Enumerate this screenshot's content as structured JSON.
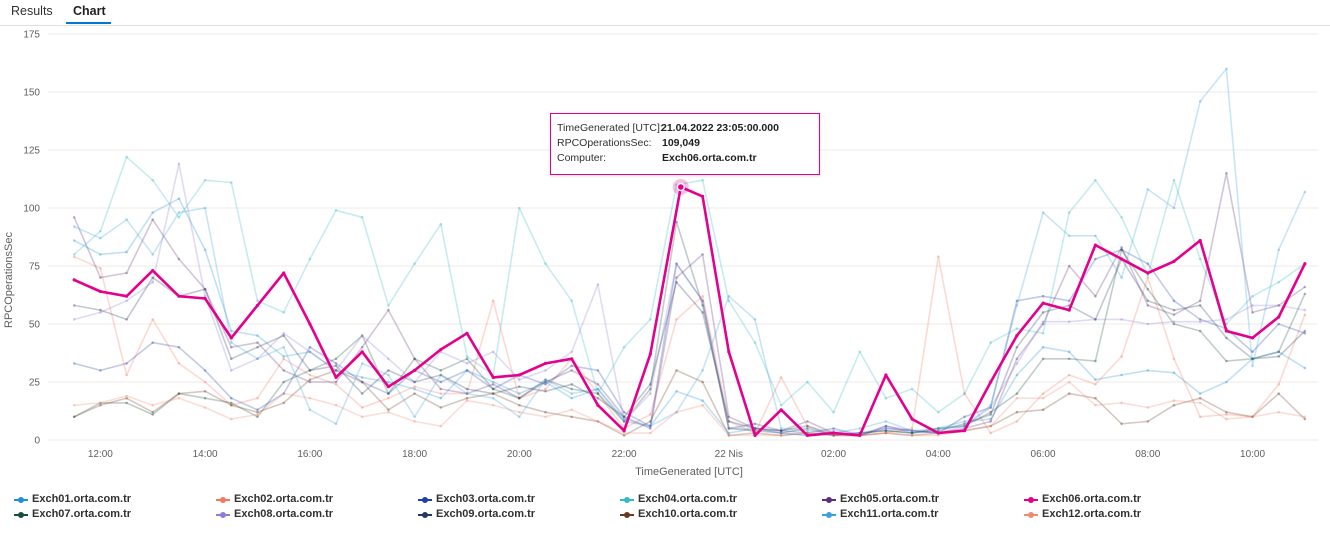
{
  "tabs": [
    {
      "label": "Results",
      "active": false
    },
    {
      "label": "Chart",
      "active": true
    }
  ],
  "chart_data": {
    "type": "line",
    "xlabel": "TimeGenerated [UTC]",
    "ylabel": "RPCOperationsSec",
    "ylim": [
      0,
      175
    ],
    "yticks": [
      0,
      25,
      50,
      75,
      100,
      125,
      150,
      175
    ],
    "xlim": [
      11.0,
      35.25
    ],
    "xtick_labels": [
      "12:00",
      "14:00",
      "16:00",
      "18:00",
      "20:00",
      "22:00",
      "22 Nis",
      "02:00",
      "04:00",
      "06:00",
      "08:00",
      "10:00"
    ],
    "grid": true,
    "legend_position": "bottom",
    "highlight_series": "Exch06.orta.com.tr",
    "series": [
      {
        "name": "Exch01.orta.com.tr",
        "color": "#1f8fd6",
        "x": [
          11.5,
          12.0,
          12.5,
          13.0,
          13.5,
          14.0,
          14.5,
          15.0,
          15.5,
          16.0,
          16.5,
          17.0,
          17.5,
          18.0,
          18.5,
          19.0,
          19.5,
          20.0,
          20.5,
          21.0,
          21.5,
          22.0,
          22.5,
          23.0,
          23.5,
          24.0,
          24.5,
          25.0,
          25.5,
          26.0,
          26.5,
          27.0,
          27.5,
          28.0,
          28.5,
          29.0,
          29.5,
          30.0,
          30.5,
          31.0,
          31.5,
          32.0,
          32.5,
          33.0,
          33.5,
          34.0,
          34.5,
          35.0
        ],
        "values": [
          86,
          80,
          81,
          98,
          104,
          82,
          47,
          45,
          36,
          38,
          30,
          27,
          25,
          22,
          18,
          30,
          25,
          20,
          25,
          18,
          22,
          8,
          6,
          21,
          17,
          3,
          5,
          3,
          2,
          3,
          2,
          6,
          3,
          5,
          8,
          9,
          28,
          40,
          38,
          26,
          28,
          30,
          29,
          20,
          25,
          35,
          38,
          31
        ]
      },
      {
        "name": "Exch02.orta.com.tr",
        "color": "#f4775e",
        "x": [
          11.5,
          12.0,
          12.5,
          13.0,
          13.5,
          14.0,
          14.5,
          15.0,
          15.5,
          16.0,
          16.5,
          17.0,
          17.5,
          18.0,
          18.5,
          19.0,
          19.5,
          20.0,
          20.5,
          21.0,
          21.5,
          22.0,
          22.5,
          23.0,
          23.5,
          24.0,
          24.5,
          25.0,
          25.5,
          26.0,
          26.5,
          27.0,
          27.5,
          28.0,
          28.5,
          29.0,
          29.5,
          30.0,
          30.5,
          31.0,
          31.5,
          32.0,
          32.5,
          33.0,
          33.5,
          34.0,
          34.5,
          35.0
        ],
        "values": [
          79,
          74,
          28,
          52,
          33,
          25,
          15,
          18,
          35,
          28,
          24,
          14,
          18,
          23,
          20,
          20,
          60,
          18,
          22,
          35,
          20,
          5,
          11,
          52,
          62,
          8,
          3,
          27,
          6,
          3,
          2,
          3,
          5,
          79,
          20,
          3,
          8,
          20,
          28,
          24,
          36,
          70,
          35,
          10,
          11,
          10,
          24,
          54
        ]
      },
      {
        "name": "Exch03.orta.com.tr",
        "color": "#1f3fa8",
        "x": [
          11.5,
          12.0,
          12.5,
          13.0,
          13.5,
          14.0,
          14.5,
          15.0,
          15.5,
          16.0,
          16.5,
          17.0,
          17.5,
          18.0,
          18.5,
          19.0,
          19.5,
          20.0,
          20.5,
          21.0,
          21.5,
          22.0,
          22.5,
          23.0,
          23.5,
          24.0,
          24.5,
          25.0,
          25.5,
          26.0,
          26.5,
          27.0,
          27.5,
          28.0,
          28.5,
          29.0,
          29.5,
          30.0,
          30.5,
          31.0,
          31.5,
          32.0,
          32.5,
          33.0,
          33.5,
          34.0,
          34.5,
          35.0
        ],
        "values": [
          33,
          30,
          33,
          42,
          40,
          30,
          18,
          13,
          20,
          40,
          33,
          25,
          20,
          30,
          25,
          30,
          22,
          28,
          24,
          32,
          30,
          12,
          6,
          76,
          60,
          5,
          7,
          4,
          3,
          5,
          2,
          5,
          4,
          3,
          10,
          14,
          60,
          62,
          60,
          78,
          82,
          76,
          60,
          52,
          48,
          38,
          50,
          46
        ]
      },
      {
        "name": "Exch04.orta.com.tr",
        "color": "#35b7c5",
        "x": [
          11.5,
          12.0,
          12.5,
          13.0,
          13.5,
          14.0,
          14.5,
          15.0,
          15.5,
          16.0,
          16.5,
          17.0,
          17.5,
          18.0,
          18.5,
          19.0,
          19.5,
          20.0,
          20.5,
          21.0,
          21.5,
          22.0,
          22.5,
          23.0,
          23.5,
          24.0,
          24.5,
          25.0,
          25.5,
          26.0,
          26.5,
          27.0,
          27.5,
          28.0,
          28.5,
          29.0,
          29.5,
          30.0,
          30.5,
          31.0,
          31.5,
          32.0,
          32.5,
          33.0,
          33.5,
          34.0,
          34.5,
          35.0
        ],
        "values": [
          80,
          90,
          122,
          112,
          96,
          112,
          111,
          60,
          55,
          78,
          99,
          96,
          58,
          76,
          93,
          36,
          28,
          100,
          76,
          60,
          20,
          40,
          52,
          110,
          112,
          60,
          42,
          15,
          25,
          12,
          38,
          18,
          22,
          12,
          20,
          42,
          48,
          46,
          98,
          112,
          96,
          71,
          112,
          78,
          50,
          62,
          68,
          76
        ]
      },
      {
        "name": "Exch05.orta.com.tr",
        "color": "#5c2d7b",
        "x": [
          11.5,
          12.0,
          12.5,
          13.0,
          13.5,
          14.0,
          14.5,
          15.0,
          15.5,
          16.0,
          16.5,
          17.0,
          17.5,
          18.0,
          18.5,
          19.0,
          19.5,
          20.0,
          20.5,
          21.0,
          21.5,
          22.0,
          22.5,
          23.0,
          23.5,
          24.0,
          24.5,
          25.0,
          25.5,
          26.0,
          26.5,
          27.0,
          27.5,
          28.0,
          28.5,
          29.0,
          29.5,
          30.0,
          30.5,
          31.0,
          31.5,
          32.0,
          32.5,
          33.0,
          33.5,
          34.0,
          34.5,
          35.0
        ],
        "values": [
          96,
          70,
          72,
          95,
          78,
          65,
          40,
          42,
          30,
          25,
          25,
          40,
          56,
          35,
          22,
          20,
          24,
          18,
          25,
          30,
          24,
          10,
          5,
          70,
          80,
          10,
          5,
          4,
          8,
          3,
          2,
          6,
          4,
          3,
          5,
          8,
          35,
          50,
          75,
          62,
          83,
          58,
          54,
          60,
          115,
          55,
          58,
          66
        ]
      },
      {
        "name": "Exch06.orta.com.tr",
        "color": "#e3008c",
        "x": [
          11.5,
          12.0,
          12.5,
          13.0,
          13.5,
          14.0,
          14.5,
          15.0,
          15.5,
          16.0,
          16.5,
          17.0,
          17.5,
          18.0,
          18.5,
          19.0,
          19.5,
          20.0,
          20.5,
          21.0,
          21.5,
          22.0,
          22.5,
          23.0833,
          23.5,
          24.0,
          24.5,
          25.0,
          25.5,
          26.0,
          26.5,
          27.0,
          27.5,
          28.0,
          28.5,
          29.0,
          29.5,
          30.0,
          30.5,
          31.0,
          31.5,
          32.0,
          32.5,
          33.0,
          33.5,
          34.0,
          34.5,
          35.0
        ],
        "values": [
          69,
          64,
          62,
          73,
          62,
          61,
          44,
          58,
          72,
          50,
          27,
          38,
          23,
          30,
          39,
          46,
          27,
          28,
          33,
          35,
          15,
          4,
          37,
          109.049,
          105,
          38,
          2,
          13,
          2,
          3,
          2,
          28,
          9,
          3,
          4,
          25,
          45,
          59,
          56,
          84,
          78,
          72,
          77,
          86,
          47,
          44,
          53,
          76
        ]
      },
      {
        "name": "Exch07.orta.com.tr",
        "color": "#1b4d3e",
        "x": [
          11.5,
          12.0,
          12.5,
          13.0,
          13.5,
          14.0,
          14.5,
          15.0,
          15.5,
          16.0,
          16.5,
          17.0,
          17.5,
          18.0,
          18.5,
          19.0,
          19.5,
          20.0,
          20.5,
          21.0,
          21.5,
          22.0,
          22.5,
          23.0,
          23.5,
          24.0,
          24.5,
          25.0,
          25.5,
          26.0,
          26.5,
          27.0,
          27.5,
          28.0,
          28.5,
          29.0,
          29.5,
          30.0,
          30.5,
          31.0,
          31.5,
          32.0,
          32.5,
          33.0,
          33.5,
          34.0,
          34.5,
          35.0
        ],
        "values": [
          10,
          16,
          16,
          11,
          20,
          18,
          16,
          10,
          25,
          30,
          35,
          45,
          20,
          35,
          30,
          35,
          22,
          18,
          26,
          22,
          20,
          8,
          22,
          94,
          58,
          5,
          4,
          3,
          5,
          2,
          3,
          4,
          3,
          5,
          6,
          12,
          20,
          35,
          35,
          34,
          82,
          65,
          50,
          47,
          34,
          35,
          38,
          63
        ]
      },
      {
        "name": "Exch08.orta.com.tr",
        "color": "#8b7fd4",
        "x": [
          11.5,
          12.0,
          12.5,
          13.0,
          13.5,
          14.0,
          14.5,
          15.0,
          15.5,
          16.0,
          16.5,
          17.0,
          17.5,
          18.0,
          18.5,
          19.0,
          19.5,
          20.0,
          20.5,
          21.0,
          21.5,
          22.0,
          22.5,
          23.0,
          23.5,
          24.0,
          24.5,
          25.0,
          25.5,
          26.0,
          26.5,
          27.0,
          27.5,
          28.0,
          28.5,
          29.0,
          29.5,
          30.0,
          30.5,
          31.0,
          31.5,
          32.0,
          32.5,
          33.0,
          33.5,
          34.0,
          34.5,
          35.0
        ],
        "values": [
          52,
          55,
          60,
          68,
          119,
          62,
          30,
          35,
          46,
          38,
          30,
          45,
          35,
          25,
          38,
          33,
          38,
          26,
          30,
          38,
          67,
          8,
          20,
          76,
          60,
          5,
          5,
          3,
          2,
          4,
          3,
          5,
          4,
          3,
          6,
          14,
          33,
          51,
          51,
          52,
          52,
          50,
          51,
          51,
          52,
          58,
          58,
          56
        ]
      },
      {
        "name": "Exch09.orta.com.tr",
        "color": "#243a5e",
        "x": [
          11.5,
          12.0,
          12.5,
          13.0,
          13.5,
          14.0,
          14.5,
          15.0,
          15.5,
          16.0,
          16.5,
          17.0,
          17.5,
          18.0,
          18.5,
          19.0,
          19.5,
          20.0,
          20.5,
          21.0,
          21.5,
          22.0,
          22.5,
          23.0,
          23.5,
          24.0,
          24.5,
          25.0,
          25.5,
          26.0,
          26.5,
          27.0,
          27.5,
          28.0,
          28.5,
          29.0,
          29.5,
          30.0,
          30.5,
          31.0,
          31.5,
          32.0,
          32.5,
          33.0,
          33.5,
          34.0,
          34.5,
          35.0
        ],
        "values": [
          58,
          56,
          52,
          70,
          62,
          65,
          35,
          40,
          45,
          30,
          32,
          20,
          30,
          25,
          28,
          22,
          20,
          23,
          21,
          24,
          18,
          10,
          24,
          68,
          55,
          8,
          5,
          4,
          6,
          2,
          3,
          4,
          3,
          4,
          7,
          11,
          40,
          55,
          58,
          52,
          78,
          60,
          56,
          58,
          44,
          35,
          36,
          47
        ]
      },
      {
        "name": "Exch10.orta.com.tr",
        "color": "#6b3a1e",
        "x": [
          11.5,
          12.0,
          12.5,
          13.0,
          13.5,
          14.0,
          14.5,
          15.0,
          15.5,
          16.0,
          16.5,
          17.0,
          17.5,
          18.0,
          18.5,
          19.0,
          19.5,
          20.0,
          20.5,
          21.0,
          21.5,
          22.0,
          22.5,
          23.0,
          23.5,
          24.0,
          24.5,
          25.0,
          25.5,
          26.0,
          26.5,
          27.0,
          27.5,
          28.0,
          28.5,
          29.0,
          29.5,
          30.0,
          30.5,
          31.0,
          31.5,
          32.0,
          32.5,
          33.0,
          33.5,
          34.0,
          34.5,
          35.0
        ],
        "values": [
          10,
          15,
          18,
          12,
          20,
          21,
          15,
          12,
          16,
          26,
          30,
          25,
          13,
          20,
          14,
          18,
          20,
          15,
          12,
          10,
          8,
          2,
          8,
          30,
          25,
          2,
          3,
          2,
          3,
          2,
          2,
          3,
          2,
          3,
          4,
          6,
          12,
          13,
          20,
          18,
          7,
          8,
          15,
          18,
          12,
          10,
          20,
          9
        ]
      },
      {
        "name": "Exch11.orta.com.tr",
        "color": "#3aa0e0",
        "x": [
          11.5,
          12.0,
          12.5,
          13.0,
          13.5,
          14.0,
          14.5,
          15.0,
          15.5,
          16.0,
          16.5,
          17.0,
          17.5,
          18.0,
          18.5,
          19.0,
          19.5,
          20.0,
          20.5,
          21.0,
          21.5,
          22.0,
          22.5,
          23.0,
          23.5,
          24.0,
          24.5,
          25.0,
          25.5,
          26.0,
          26.5,
          27.0,
          27.5,
          28.0,
          28.5,
          29.0,
          29.5,
          30.0,
          30.5,
          31.0,
          31.5,
          32.0,
          32.5,
          33.0,
          33.5,
          34.0,
          34.5,
          35.0
        ],
        "values": [
          92,
          87,
          95,
          80,
          98,
          100,
          42,
          35,
          40,
          13,
          7,
          33,
          28,
          10,
          28,
          20,
          18,
          10,
          26,
          20,
          22,
          9,
          6,
          12,
          30,
          62,
          52,
          5,
          4,
          3,
          5,
          8,
          4,
          5,
          6,
          15,
          58,
          98,
          88,
          88,
          70,
          108,
          100,
          146,
          160,
          32,
          82,
          107
        ]
      },
      {
        "name": "Exch12.orta.com.tr",
        "color": "#f08a70",
        "x": [
          11.5,
          12.0,
          12.5,
          13.0,
          13.5,
          14.0,
          14.5,
          15.0,
          15.5,
          16.0,
          16.5,
          17.0,
          17.5,
          18.0,
          18.5,
          19.0,
          19.5,
          20.0,
          20.5,
          21.0,
          21.5,
          22.0,
          22.5,
          23.0,
          23.5,
          24.0,
          24.5,
          25.0,
          25.5,
          26.0,
          26.5,
          27.0,
          27.5,
          28.0,
          28.5,
          29.0,
          29.5,
          30.0,
          30.5,
          31.0,
          31.5,
          32.0,
          32.5,
          33.0,
          33.5,
          34.0,
          34.5,
          35.0
        ],
        "values": [
          15,
          16,
          19,
          15,
          18,
          14,
          9,
          11,
          20,
          18,
          15,
          10,
          12,
          8,
          6,
          17,
          15,
          12,
          10,
          13,
          8,
          3,
          3,
          12,
          15,
          2,
          2,
          2,
          3,
          2,
          2,
          3,
          2,
          2,
          4,
          6,
          18,
          18,
          25,
          15,
          16,
          14,
          17,
          16,
          9,
          10,
          12,
          10
        ]
      }
    ],
    "tooltip": {
      "rows": [
        {
          "label": "TimeGenerated [UTC]:",
          "value": "21.04.2022 23:05:00.000"
        },
        {
          "label": "RPCOperationsSec:",
          "value": "109,049"
        },
        {
          "label": "Computer:",
          "value": "Exch06.orta.com.tr"
        }
      ],
      "point_x": 23.0833,
      "point_y": 109.049
    }
  }
}
